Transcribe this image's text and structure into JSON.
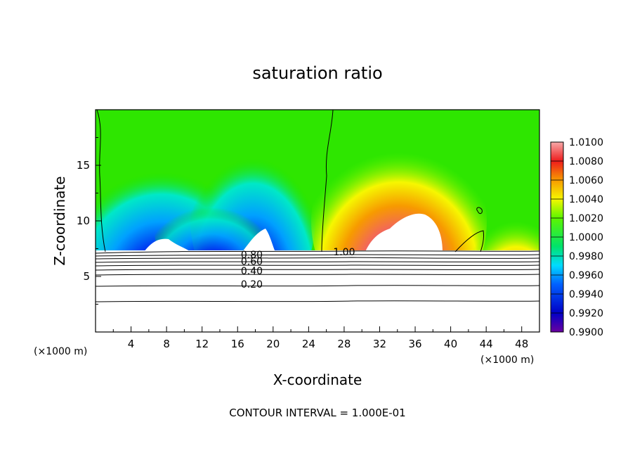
{
  "chart_data": {
    "type": "heatmap",
    "title": "saturation ratio",
    "xlabel": "X-coordinate",
    "ylabel": "Z-coordinate",
    "x_unit": "(×1000 m)",
    "x_unit_right": "(×1000 m)",
    "xlim": [
      0,
      50
    ],
    "ylim": [
      0,
      20
    ],
    "x_ticks": [
      4,
      8,
      12,
      16,
      20,
      24,
      28,
      32,
      36,
      40,
      44,
      48
    ],
    "y_ticks": [
      5,
      10,
      15
    ],
    "colorbar": {
      "range": [
        0.99,
        1.01
      ],
      "labels": [
        "1.0100",
        "1.0080",
        "1.0060",
        "1.0040",
        "1.0020",
        "1.0000",
        "0.9980",
        "0.9960",
        "0.9940",
        "0.9920",
        "0.9900"
      ],
      "colors": [
        "#f7a9a9",
        "#f26262",
        "#ee1c1c",
        "#f25d0b",
        "#f79a00",
        "#fbd400",
        "#f6f700",
        "#c2ff00",
        "#5cf500",
        "#18e300",
        "#00e36b",
        "#00e8c7",
        "#00dbff",
        "#00a0ff",
        "#0060ff",
        "#0024ee",
        "#0000c7",
        "#3d00a8",
        "#6a00a0"
      ]
    },
    "contour_labels": [
      {
        "text": "1.00",
        "x": 28.0,
        "y": 7.2
      },
      {
        "text": "0.80",
        "x": 17.6,
        "y": 6.95
      },
      {
        "text": "0.60",
        "x": 17.6,
        "y": 6.35
      },
      {
        "text": "0.40",
        "x": 17.6,
        "y": 5.5
      },
      {
        "text": "0.20",
        "x": 17.6,
        "y": 4.3
      }
    ],
    "contour_interval_text": "CONTOUR INTERVAL = 1.000E-01"
  }
}
